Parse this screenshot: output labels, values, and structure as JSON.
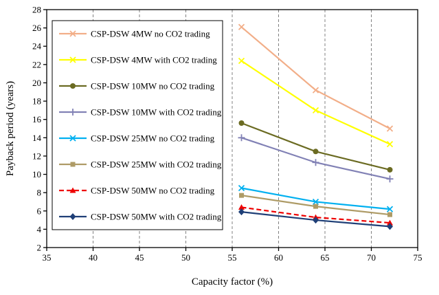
{
  "chart_data": {
    "type": "line",
    "title": "",
    "xlabel": "Capacity factor (%)",
    "ylabel": "Payback period (years)",
    "xlim": [
      35,
      75
    ],
    "ylim": [
      2,
      28
    ],
    "xticks": [
      35,
      40,
      45,
      50,
      55,
      60,
      65,
      70,
      75
    ],
    "yticks": [
      2,
      4,
      6,
      8,
      10,
      12,
      14,
      16,
      18,
      20,
      22,
      24,
      26,
      28
    ],
    "grid": "vertical-dashed",
    "legend_position": "upper-left",
    "x": [
      56,
      64,
      72
    ],
    "series": [
      {
        "name": "CSP-DSW 4MW no CO2 trading",
        "color": "#F2AE88",
        "marker": "x",
        "dashed": false,
        "values": [
          26.1,
          19.2,
          15.0
        ]
      },
      {
        "name": "CSP-DSW 4MW with CO2 trading",
        "color": "#FFFF00",
        "marker": "x",
        "dashed": false,
        "values": [
          22.4,
          17.0,
          13.3
        ]
      },
      {
        "name": "CSP-DSW 10MW no CO2 trading",
        "color": "#6B6B22",
        "marker": "circle",
        "dashed": false,
        "values": [
          15.6,
          12.5,
          10.5
        ]
      },
      {
        "name": "CSP-DSW 10MW with CO2 trading",
        "color": "#8181B5",
        "marker": "plus",
        "dashed": false,
        "values": [
          14.0,
          11.3,
          9.5
        ]
      },
      {
        "name": "CSP-DSW 25MW no CO2 trading",
        "color": "#00B0F0",
        "marker": "x",
        "dashed": false,
        "values": [
          8.5,
          7.0,
          6.2
        ]
      },
      {
        "name": "CSP-DSW 25MW with CO2 trading",
        "color": "#AE9B66",
        "marker": "square",
        "dashed": false,
        "values": [
          7.7,
          6.5,
          5.6
        ]
      },
      {
        "name": "CSP-DSW 50MW no CO2 trading",
        "color": "#EE0000",
        "marker": "triangle",
        "dashed": true,
        "values": [
          6.4,
          5.3,
          4.7
        ]
      },
      {
        "name": "CSP-DSW 50MW with CO2 trading",
        "color": "#1F3F77",
        "marker": "diamond",
        "dashed": false,
        "values": [
          5.9,
          5.0,
          4.3
        ]
      }
    ]
  }
}
